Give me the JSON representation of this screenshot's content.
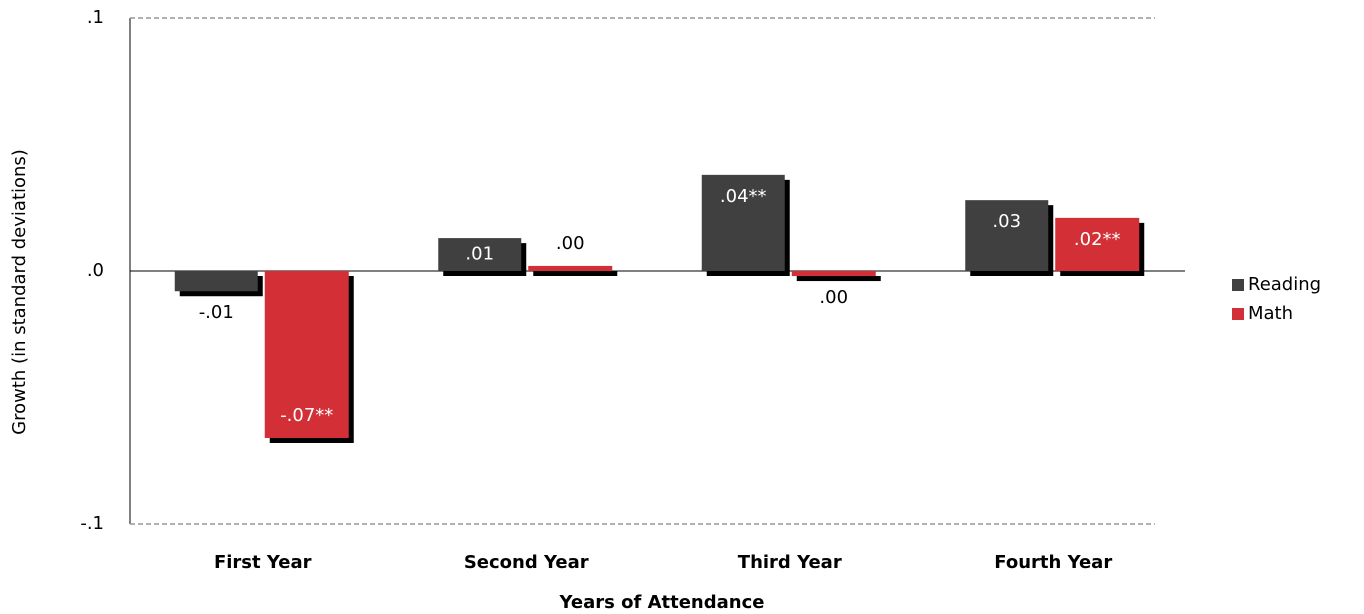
{
  "chart_data": {
    "type": "bar",
    "x_label": "Years of Attendance",
    "y_label": "Growth (in standard deviations)",
    "categories": [
      "First Year",
      "Second Year",
      "Third Year",
      "Fourth Year"
    ],
    "series": [
      {
        "name": "Reading",
        "color": "#404040",
        "values": [
          -0.008,
          0.013,
          0.038,
          0.028
        ],
        "value_labels": [
          "-.01",
          ".01",
          ".04**",
          ".03"
        ]
      },
      {
        "name": "Math",
        "color": "#d32f36",
        "values": [
          -0.066,
          0.002,
          -0.002,
          0.021
        ],
        "value_labels": [
          "-.07**",
          ".00",
          ".00",
          ".02**"
        ]
      }
    ],
    "ylim": [
      -0.1,
      0.1
    ],
    "yticks": [
      {
        "value": -0.1,
        "label": "-.1"
      },
      {
        "value": 0,
        "label": ".0"
      },
      {
        "value": 0.1,
        "label": ".1"
      }
    ],
    "grid": true,
    "legend": "right"
  }
}
